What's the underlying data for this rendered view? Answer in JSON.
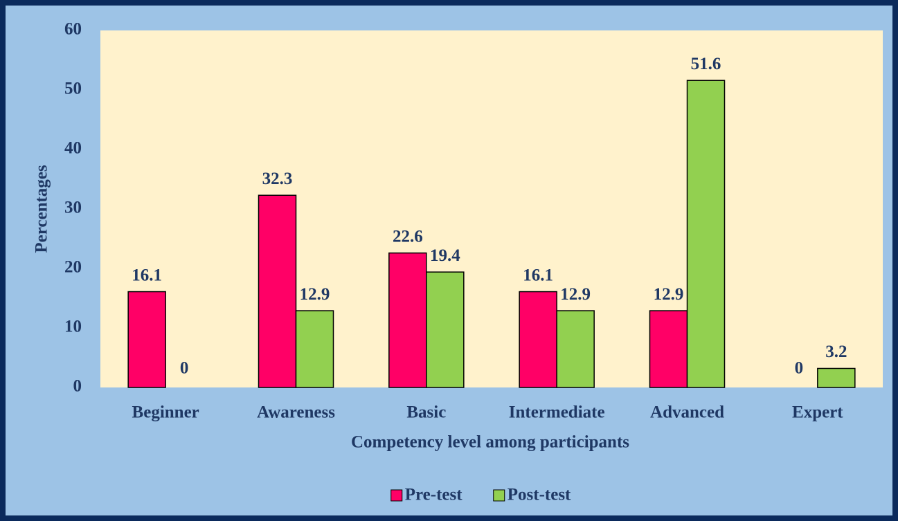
{
  "chart_data": {
    "type": "bar",
    "x_label": "Competency level among participants",
    "y_label": "Percentages",
    "categories": [
      "Beginner",
      "Awareness",
      "Basic",
      "Intermediate",
      "Advanced",
      "Expert"
    ],
    "series": [
      {
        "name": "Pre-test",
        "color": "#ff0066",
        "values": [
          16.1,
          32.3,
          22.6,
          16.1,
          12.9,
          0
        ]
      },
      {
        "name": "Post-test",
        "color": "#92d050",
        "values": [
          0,
          12.9,
          19.4,
          12.9,
          51.6,
          3.2
        ]
      }
    ],
    "ylim": [
      0,
      60
    ],
    "yticks": [
      0,
      10,
      20,
      30,
      40,
      50,
      60
    ],
    "legend": "bottom"
  }
}
